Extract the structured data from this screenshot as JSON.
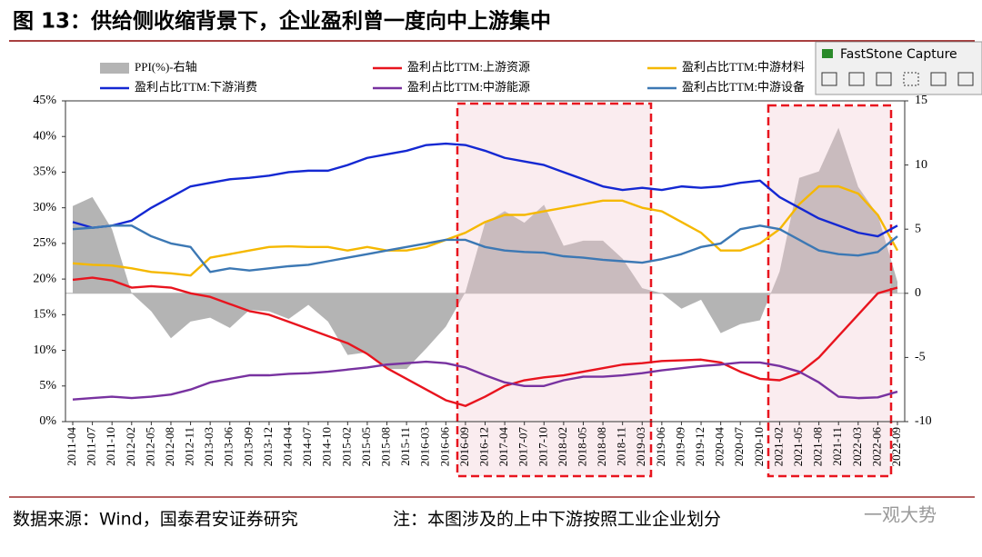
{
  "chart_data": {
    "type": "line",
    "title": "图 13：供给侧收缩背景下，企业盈利曾一度向中上游集中",
    "categories": [
      "2011-04",
      "2011-07",
      "2011-10",
      "2012-02",
      "2012-05",
      "2012-08",
      "2012-11",
      "2013-03",
      "2013-06",
      "2013-09",
      "2013-12",
      "2014-04",
      "2014-07",
      "2014-10",
      "2015-02",
      "2015-05",
      "2015-08",
      "2015-11",
      "2016-03",
      "2016-06",
      "2016-09",
      "2016-12",
      "2017-04",
      "2017-07",
      "2017-10",
      "2018-02",
      "2018-05",
      "2018-08",
      "2018-11",
      "2019-03",
      "2019-06",
      "2019-09",
      "2019-12",
      "2020-04",
      "2020-07",
      "2020-10",
      "2021-02",
      "2021-05",
      "2021-08",
      "2021-11",
      "2022-03",
      "2022-06",
      "2022-09"
    ],
    "series": [
      {
        "name": "PPI(%)-右轴",
        "type": "area",
        "axis": "y2",
        "color": "#b4b4b4",
        "values": [
          6.8,
          7.5,
          5,
          0,
          -1.4,
          -3.5,
          -2.2,
          -1.9,
          -2.7,
          -1.3,
          -1.4,
          -2,
          -0.9,
          -2.2,
          -4.8,
          -4.6,
          -5.9,
          -5.9,
          -4.3,
          -2.6,
          0.1,
          5.5,
          6.4,
          5.5,
          6.9,
          3.7,
          4.1,
          4.1,
          2.7,
          0.4,
          0,
          -1.2,
          -0.5,
          -3.1,
          -2.4,
          -2.1,
          1.7,
          9,
          9.5,
          12.9,
          8.3,
          6.1,
          0.9
        ]
      },
      {
        "name": "盈利占比TTM:上游资源",
        "color": "#e8141e",
        "values": [
          19.9,
          20.2,
          19.8,
          18.8,
          19,
          18.8,
          18,
          17.5,
          16.5,
          15.5,
          15,
          14,
          13,
          12,
          11,
          9.5,
          7.5,
          6,
          4.5,
          3,
          2.2,
          3.5,
          5,
          5.8,
          6.2,
          6.5,
          7,
          7.5,
          8,
          8.2,
          8.5,
          8.6,
          8.7,
          8.3,
          7,
          6,
          5.8,
          6.8,
          9,
          12,
          15,
          18,
          18.8
        ]
      },
      {
        "name": "盈利占比TTM:中游材料",
        "color": "#f5b800",
        "values": [
          22.2,
          22,
          21.9,
          21.5,
          21,
          20.8,
          20.5,
          23,
          23.5,
          24,
          24.5,
          24.6,
          24.5,
          24.5,
          24,
          24.5,
          24,
          24,
          24.5,
          25.5,
          26.5,
          28,
          29,
          29,
          29.5,
          30,
          30.5,
          31,
          31,
          30,
          29.5,
          28,
          26.5,
          24,
          24,
          25,
          27,
          30.5,
          33,
          33,
          32,
          29,
          24
        ]
      },
      {
        "name": "盈利占比TTM:下游消费",
        "color": "#1428d2",
        "values": [
          28,
          27.2,
          27.5,
          28.2,
          30,
          31.5,
          33,
          33.5,
          34,
          34.2,
          34.5,
          35,
          35.2,
          35.2,
          36,
          37,
          37.5,
          38,
          38.8,
          39,
          38.8,
          38,
          37,
          36.5,
          36,
          35,
          34,
          33,
          32.5,
          32.8,
          32.5,
          33,
          32.8,
          33,
          33.5,
          33.8,
          31.5,
          30,
          28.5,
          27.5,
          26.5,
          26,
          27.5
        ]
      },
      {
        "name": "盈利占比TTM:中游能源",
        "color": "#7832a0",
        "values": [
          3.1,
          3.3,
          3.5,
          3.3,
          3.5,
          3.8,
          4.5,
          5.5,
          6,
          6.5,
          6.5,
          6.7,
          6.8,
          7,
          7.3,
          7.6,
          8,
          8.2,
          8.4,
          8.2,
          7.6,
          6.5,
          5.5,
          5,
          5,
          5.8,
          6.3,
          6.3,
          6.5,
          6.8,
          7.2,
          7.5,
          7.8,
          8,
          8.3,
          8.3,
          7.8,
          7,
          5.5,
          3.5,
          3.3,
          3.4,
          4.2
        ]
      },
      {
        "name": "盈利占比TTM:中游设备",
        "color": "#3c78b4",
        "values": [
          27,
          27.2,
          27.5,
          27.5,
          26,
          25,
          24.5,
          21,
          21.5,
          21.2,
          21.5,
          21.8,
          22,
          22.5,
          23,
          23.5,
          24,
          24.5,
          25,
          25.5,
          25.5,
          24.5,
          24,
          23.8,
          23.7,
          23.2,
          23,
          22.7,
          22.5,
          22.3,
          22.8,
          23.5,
          24.5,
          25,
          27,
          27.5,
          27,
          25.5,
          24,
          23.5,
          23.3,
          23.8,
          26
        ]
      }
    ],
    "ylim": [
      0,
      45
    ],
    "yticks": [
      {
        "value": 0,
        "label": "0%"
      },
      {
        "value": 5,
        "label": "5%"
      },
      {
        "value": 10,
        "label": "10%"
      },
      {
        "value": 15,
        "label": "15%"
      },
      {
        "value": 20,
        "label": "20%"
      },
      {
        "value": 25,
        "label": "25%"
      },
      {
        "value": 30,
        "label": "30%"
      },
      {
        "value": 35,
        "label": "35%"
      },
      {
        "value": 40,
        "label": "40%"
      },
      {
        "value": 45,
        "label": "45%"
      }
    ],
    "y2lim": [
      -10,
      15
    ],
    "y2ticks": [
      -10,
      -5,
      0,
      5,
      10,
      15
    ],
    "source": "数据来源：Wind，国泰君安证券研究",
    "note": "注：本图涉及的上中下游按照工业企业划分"
  },
  "watermark": "一观大势",
  "overlay": {
    "title": "FastStone Capture"
  }
}
